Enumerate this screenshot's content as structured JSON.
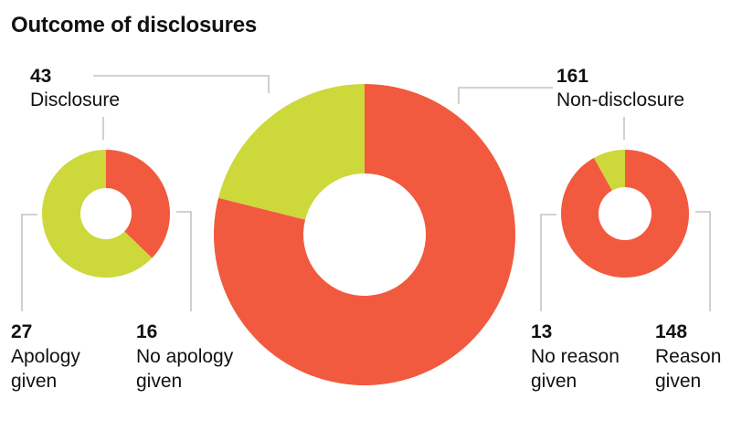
{
  "chart_data": {
    "type": "pie",
    "title": "Outcome of disclosures",
    "colors": {
      "red": "#f15a3e",
      "green": "#cdd83a",
      "line": "#b7b7b7"
    },
    "charts": [
      {
        "id": "left",
        "header": {
          "value": "43",
          "label": "Disclosure"
        },
        "slices": [
          {
            "value": 16,
            "label": "No apology given",
            "color": "#f15a3e"
          },
          {
            "value": 27,
            "label": "Apology given",
            "color": "#cdd83a"
          }
        ]
      },
      {
        "id": "main",
        "slices": [
          {
            "value": 161,
            "label": "Non-disclosure",
            "color": "#f15a3e"
          },
          {
            "value": 43,
            "label": "Disclosure",
            "color": "#cdd83a"
          }
        ]
      },
      {
        "id": "right",
        "header": {
          "value": "161",
          "label": "Non-disclosure"
        },
        "slices": [
          {
            "value": 148,
            "label": "Reason given",
            "color": "#f15a3e"
          },
          {
            "value": 13,
            "label": "No reason given",
            "color": "#cdd83a"
          }
        ]
      }
    ],
    "annotations": {
      "apology_given": {
        "value": "27",
        "line1": "Apology",
        "line2": "given"
      },
      "no_apology_given": {
        "value": "16",
        "line1": "No apology",
        "line2": "given"
      },
      "no_reason_given": {
        "value": "13",
        "line1": "No reason",
        "line2": "given"
      },
      "reason_given": {
        "value": "148",
        "line1": "Reason",
        "line2": "given"
      }
    }
  }
}
